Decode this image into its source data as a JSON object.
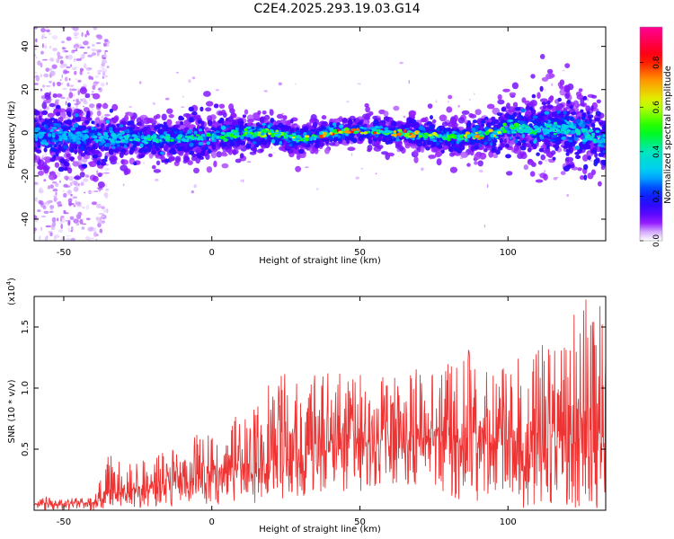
{
  "figure": {
    "title": "C2E4.2025.293.19.03.G14"
  },
  "chart_data": [
    {
      "type": "heatmap",
      "title": "C2E4.2025.293.19.03.G14",
      "xlabel": "Height of straight line (km)",
      "ylabel": "Frequency (Hz)",
      "xlim": [
        -60,
        133
      ],
      "ylim": [
        -50,
        49
      ],
      "xticks": [
        -50,
        0,
        50,
        100
      ],
      "xtick_labels": [
        "-50",
        "0",
        "50",
        "100"
      ],
      "yticks": [
        -40,
        -20,
        0,
        20,
        40
      ],
      "ytick_labels": [
        "-40",
        "-20",
        "0",
        "20",
        "40"
      ],
      "colorbar": {
        "label": "Normalized spectral amplitude",
        "range": [
          0,
          0.96
        ],
        "ticks": [
          0.0,
          0.2,
          0.4,
          0.6,
          0.8
        ],
        "tick_labels": [
          "0.0",
          "0.2",
          "0.4",
          "0.6",
          "0.8"
        ],
        "colors": [
          "#ffffff",
          "#7f00ff",
          "#0000ff",
          "#00d0ff",
          "#00ff00",
          "#ffff00",
          "#ff8000",
          "#ff0000",
          "#ff0080"
        ]
      },
      "ridge_center_hz": [
        {
          "x": -60,
          "f": -1
        },
        {
          "x": -40,
          "f": -2
        },
        {
          "x": -20,
          "f": -3
        },
        {
          "x": 0,
          "f": -2
        },
        {
          "x": 10,
          "f": 0
        },
        {
          "x": 20,
          "f": 0
        },
        {
          "x": 30,
          "f": -3
        },
        {
          "x": 40,
          "f": 0
        },
        {
          "x": 50,
          "f": 1
        },
        {
          "x": 60,
          "f": 0
        },
        {
          "x": 70,
          "f": -1
        },
        {
          "x": 80,
          "f": -2
        },
        {
          "x": 95,
          "f": -1
        },
        {
          "x": 100,
          "f": 2
        },
        {
          "x": 110,
          "f": 1
        },
        {
          "x": 120,
          "f": 3
        },
        {
          "x": 133,
          "f": -3
        }
      ],
      "ridge_halfwidth_hz": [
        {
          "x": -60,
          "w": 10
        },
        {
          "x": -40,
          "w": 9
        },
        {
          "x": -20,
          "w": 6
        },
        {
          "x": 0,
          "w": 7
        },
        {
          "x": 20,
          "w": 5
        },
        {
          "x": 40,
          "w": 4
        },
        {
          "x": 60,
          "w": 4
        },
        {
          "x": 80,
          "w": 5
        },
        {
          "x": 100,
          "w": 7
        },
        {
          "x": 115,
          "w": 12
        },
        {
          "x": 133,
          "w": 10
        }
      ],
      "peak_amplitude": [
        {
          "x": -60,
          "a": 0.3
        },
        {
          "x": -40,
          "a": 0.3
        },
        {
          "x": -20,
          "a": 0.45
        },
        {
          "x": 0,
          "a": 0.5
        },
        {
          "x": 20,
          "a": 0.65
        },
        {
          "x": 30,
          "a": 0.7
        },
        {
          "x": 40,
          "a": 0.9
        },
        {
          "x": 50,
          "a": 0.85
        },
        {
          "x": 60,
          "a": 0.85
        },
        {
          "x": 70,
          "a": 0.8
        },
        {
          "x": 80,
          "a": 0.55
        },
        {
          "x": 90,
          "a": 0.8
        },
        {
          "x": 100,
          "a": 0.55
        },
        {
          "x": 115,
          "a": 0.45
        },
        {
          "x": 133,
          "a": 0.4
        }
      ]
    },
    {
      "type": "line",
      "xlabel": "Height of straight line (km)",
      "ylabel": "SNR (10 * v/v)",
      "y_multiplier_label": "(x10",
      "y_multiplier_exponent": "4",
      "y_multiplier_close": ")",
      "xlim": [
        -60,
        133
      ],
      "ylim": [
        0,
        1.75
      ],
      "xticks": [
        -50,
        0,
        50,
        100
      ],
      "xtick_labels": [
        "-50",
        "0",
        "50",
        "100"
      ],
      "yticks": [
        0.5,
        1.0,
        1.5
      ],
      "ytick_labels": [
        "0.5",
        "1.0",
        "1.5"
      ],
      "line_color": "#ee3333",
      "series": [
        {
          "name": "SNR",
          "x": [
            -60,
            -50,
            -40,
            -35,
            -25,
            -15,
            -5,
            5,
            15,
            25,
            35,
            45,
            55,
            65,
            75,
            85,
            95,
            105,
            115,
            125,
            133
          ],
          "y_mean": [
            0.05,
            0.05,
            0.06,
            0.14,
            0.18,
            0.22,
            0.27,
            0.31,
            0.38,
            0.42,
            0.48,
            0.52,
            0.55,
            0.58,
            0.6,
            0.62,
            0.6,
            0.55,
            0.6,
            0.58,
            0.55
          ],
          "y_upper": [
            0.12,
            0.1,
            0.1,
            0.46,
            0.4,
            0.5,
            0.62,
            0.72,
            0.95,
            1.16,
            1.14,
            1.12,
            1.13,
            1.2,
            1.18,
            1.38,
            1.18,
            1.27,
            1.4,
            1.75,
            1.65
          ],
          "y_lower": [
            0.0,
            0.0,
            0.0,
            0.02,
            0.02,
            0.02,
            0.04,
            0.04,
            0.06,
            0.1,
            0.1,
            0.15,
            0.15,
            0.2,
            0.2,
            0.05,
            0.1,
            0.0,
            0.05,
            0.0,
            0.02
          ]
        }
      ]
    }
  ]
}
